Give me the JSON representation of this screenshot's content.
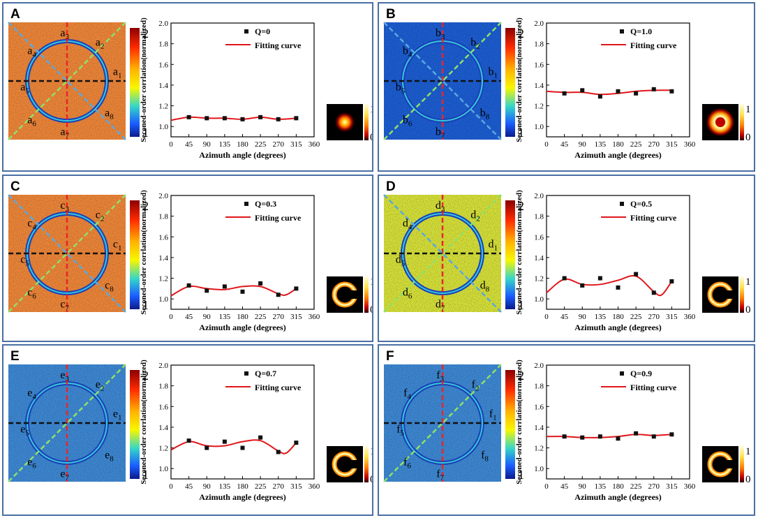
{
  "figure": {
    "common": {
      "xlabel": "Azimuth angle (degrees)",
      "ylabel": "Seconed-order corrlation(normalized)",
      "xticks": [
        0,
        45,
        90,
        135,
        180,
        225,
        270,
        315,
        360
      ],
      "yticks": [
        1.0,
        1.2,
        1.4,
        1.6,
        1.8,
        2.0
      ],
      "colorbar_big_ticks": [
        "2",
        "1"
      ],
      "colorbar_small_ticks": [
        "1",
        "0"
      ],
      "fit_legend": "Fitting curve"
    },
    "panels": [
      {
        "id": "A",
        "letter": "a",
        "q_legend": "Q=0",
        "color_main": "#f0883a",
        "labels": [
          "1",
          "2",
          "3",
          "4",
          "5",
          "6",
          "7",
          "8"
        ]
      },
      {
        "id": "B",
        "letter": "b",
        "q_legend": "Q=1.0",
        "color_main": "#1e5fd4",
        "labels": [
          "1",
          "2",
          "3",
          "4",
          "5",
          "6",
          "7",
          "8"
        ]
      },
      {
        "id": "C",
        "letter": "c",
        "q_legend": "Q=0.3",
        "color_main": "#f0883a",
        "labels": [
          "1",
          "2",
          "3",
          "4",
          "5",
          "6",
          "7",
          "8"
        ]
      },
      {
        "id": "D",
        "letter": "d",
        "q_legend": "Q=0.5",
        "color_main": "#d9e33a",
        "labels": [
          "1",
          "2",
          "3",
          "4",
          "5",
          "6",
          "7",
          "8"
        ]
      },
      {
        "id": "E",
        "letter": "e",
        "q_legend": "Q=0.7",
        "color_main": "#3f8ad6",
        "labels": [
          "1",
          "2",
          "3",
          "4",
          "5",
          "6",
          "7",
          "8"
        ]
      },
      {
        "id": "F",
        "letter": "f",
        "q_legend": "Q=0.9",
        "color_main": "#3f8ad6",
        "labels": [
          "1",
          "2",
          "3",
          "4",
          "5",
          "6",
          "7",
          "8"
        ]
      }
    ]
  },
  "chart_data": [
    {
      "panel": "A",
      "type": "scatter",
      "title": "",
      "xlabel": "Azimuth angle (degrees)",
      "ylabel": "Seconed-order corrlation(normalized)",
      "xlim": [
        0,
        360
      ],
      "ylim": [
        0.9,
        2.0
      ],
      "series": [
        {
          "name": "Q=0",
          "x": [
            45,
            90,
            135,
            180,
            225,
            270,
            315
          ],
          "y": [
            1.09,
            1.08,
            1.08,
            1.07,
            1.09,
            1.07,
            1.08
          ]
        },
        {
          "name": "Fitting curve",
          "x": [
            0,
            45,
            90,
            135,
            180,
            225,
            270,
            315
          ],
          "y": [
            1.06,
            1.09,
            1.08,
            1.08,
            1.07,
            1.09,
            1.07,
            1.08
          ]
        }
      ]
    },
    {
      "panel": "B",
      "type": "scatter",
      "title": "",
      "xlabel": "Azimuth angle (degrees)",
      "ylabel": "Seconed-order corrlation(normalized)",
      "xlim": [
        0,
        360
      ],
      "ylim": [
        0.9,
        2.0
      ],
      "series": [
        {
          "name": "Q=1.0",
          "x": [
            45,
            90,
            135,
            180,
            225,
            270,
            315
          ],
          "y": [
            1.32,
            1.35,
            1.29,
            1.34,
            1.32,
            1.36,
            1.34
          ]
        },
        {
          "name": "Fitting curve",
          "x": [
            0,
            45,
            90,
            135,
            180,
            225,
            270,
            315
          ],
          "y": [
            1.34,
            1.33,
            1.33,
            1.31,
            1.32,
            1.34,
            1.35,
            1.35
          ]
        }
      ]
    },
    {
      "panel": "C",
      "type": "scatter",
      "title": "",
      "xlabel": "Azimuth angle (degrees)",
      "ylabel": "Seconed-order corrlation(normalized)",
      "xlim": [
        0,
        360
      ],
      "ylim": [
        0.9,
        2.0
      ],
      "series": [
        {
          "name": "Q=0.3",
          "x": [
            45,
            90,
            135,
            180,
            225,
            270,
            315
          ],
          "y": [
            1.13,
            1.08,
            1.12,
            1.07,
            1.15,
            1.04,
            1.1
          ]
        },
        {
          "name": "Fitting curve",
          "x": [
            0,
            45,
            90,
            135,
            180,
            225,
            270,
            290,
            315
          ],
          "y": [
            1.03,
            1.12,
            1.1,
            1.09,
            1.12,
            1.12,
            1.05,
            1.04,
            1.1
          ]
        }
      ]
    },
    {
      "panel": "D",
      "type": "scatter",
      "title": "",
      "xlabel": "Azimuth angle (degrees)",
      "ylabel": "Seconed-order corrlation(normalized)",
      "xlim": [
        0,
        360
      ],
      "ylim": [
        0.9,
        2.0
      ],
      "series": [
        {
          "name": "Q=0.5",
          "x": [
            45,
            90,
            135,
            180,
            225,
            270,
            315
          ],
          "y": [
            1.2,
            1.13,
            1.2,
            1.11,
            1.24,
            1.06,
            1.17
          ]
        },
        {
          "name": "Fitting curve",
          "x": [
            0,
            45,
            90,
            135,
            180,
            225,
            270,
            290,
            315
          ],
          "y": [
            1.06,
            1.19,
            1.14,
            1.14,
            1.18,
            1.22,
            1.07,
            1.04,
            1.17
          ]
        }
      ]
    },
    {
      "panel": "E",
      "type": "scatter",
      "title": "",
      "xlabel": "Azimuth angle (degrees)",
      "ylabel": "Seconed-order corrlation(normalized)",
      "xlim": [
        0,
        360
      ],
      "ylim": [
        0.9,
        2.0
      ],
      "series": [
        {
          "name": "Q=0.7",
          "x": [
            45,
            90,
            135,
            180,
            225,
            270,
            315
          ],
          "y": [
            1.27,
            1.2,
            1.26,
            1.2,
            1.3,
            1.16,
            1.25
          ]
        },
        {
          "name": "Fitting curve",
          "x": [
            0,
            45,
            90,
            135,
            180,
            225,
            270,
            290,
            315
          ],
          "y": [
            1.18,
            1.26,
            1.22,
            1.22,
            1.26,
            1.27,
            1.17,
            1.15,
            1.25
          ]
        }
      ]
    },
    {
      "panel": "F",
      "type": "scatter",
      "title": "",
      "xlabel": "Azimuth angle (degrees)",
      "ylabel": "Seconed-order corrlation(normalized)",
      "xlim": [
        0,
        360
      ],
      "ylim": [
        0.9,
        2.0
      ],
      "series": [
        {
          "name": "Q=0.9",
          "x": [
            45,
            90,
            135,
            180,
            225,
            270,
            315
          ],
          "y": [
            1.31,
            1.3,
            1.31,
            1.29,
            1.34,
            1.31,
            1.33
          ]
        },
        {
          "name": "Fitting curve",
          "x": [
            0,
            45,
            90,
            135,
            180,
            225,
            270,
            315
          ],
          "y": [
            1.31,
            1.31,
            1.3,
            1.3,
            1.31,
            1.33,
            1.32,
            1.33
          ]
        }
      ]
    }
  ]
}
